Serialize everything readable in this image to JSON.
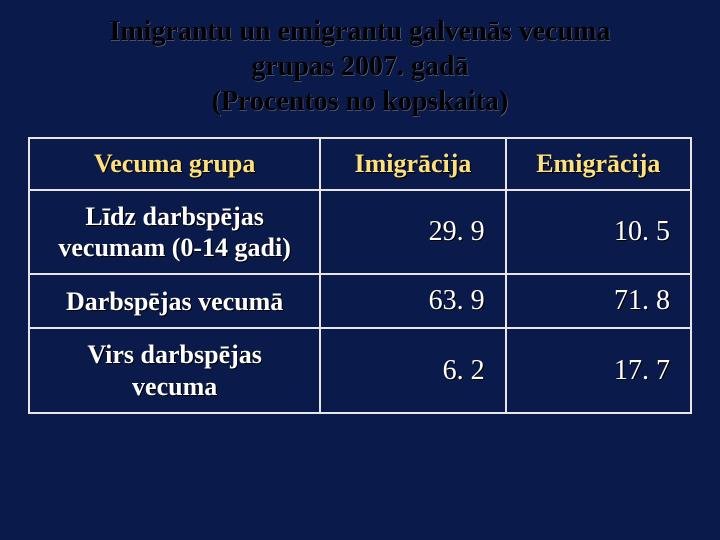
{
  "title": {
    "line1": "Imigrantu un emigrantu galvenās vecuma",
    "line2": "grupas 2007. gadā",
    "line3": "(Procentos no kopskaita)"
  },
  "table": {
    "columns": [
      "Vecuma grupa",
      "Imigrācija",
      "Emigrācija"
    ],
    "rows": [
      {
        "label": "Līdz darbspējas vecumam (0-14 gadi)",
        "imm": "29. 9",
        "emi": "10. 5"
      },
      {
        "label": "Darbspējas vecumā",
        "imm": "63. 9",
        "emi": "71. 8"
      },
      {
        "label": "Virs darbspējas vecuma",
        "imm": "6. 2",
        "emi": "17. 7"
      }
    ],
    "styling": {
      "background_color": "#0a1a4a",
      "border_color": "#e6e6e6",
      "header_text_color": "#ffe07a",
      "cell_text_color": "#ffffff",
      "title_text_color": "#000000",
      "font_family": "Times New Roman",
      "header_fontsize_pt": 20,
      "cell_fontsize_pt": 20,
      "title_fontsize_pt": 21,
      "column_widths_pct": [
        44,
        28,
        28
      ],
      "value_alignment": "right",
      "label_alignment": "center"
    }
  }
}
